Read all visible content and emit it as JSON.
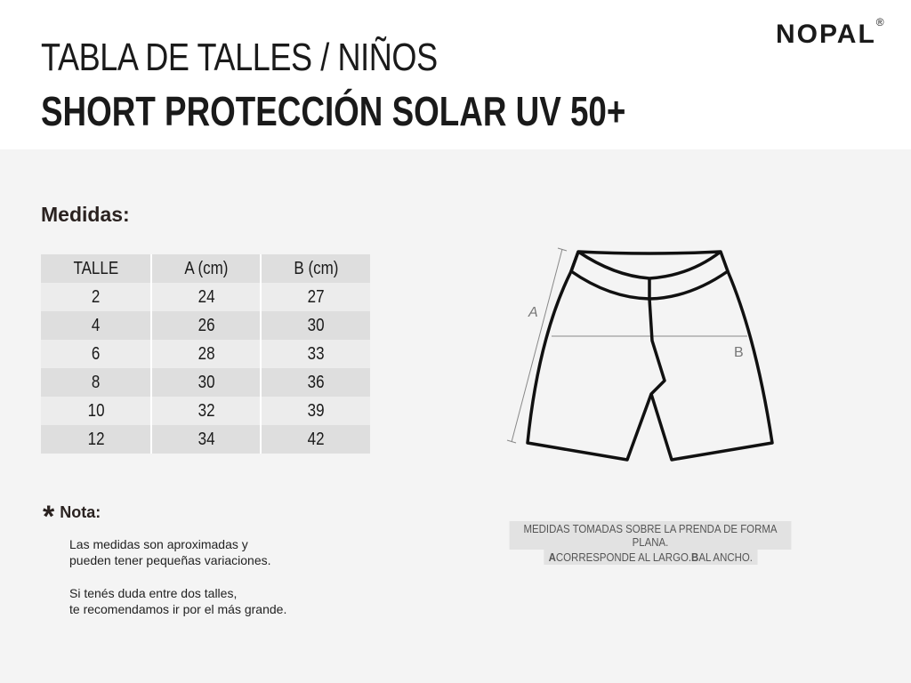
{
  "header": {
    "title": "TABLA DE TALLES / NIÑOS",
    "subtitle": "SHORT PROTECCIÓN SOLAR UV 50+",
    "logo": "NOPAL",
    "registered": "®"
  },
  "section_title": "Medidas:",
  "table": {
    "headers": [
      "TALLE",
      "A (cm)",
      "B (cm)"
    ],
    "rows": [
      [
        "2",
        "24",
        "27"
      ],
      [
        "4",
        "26",
        "30"
      ],
      [
        "6",
        "28",
        "33"
      ],
      [
        "8",
        "30",
        "36"
      ],
      [
        "10",
        "32",
        "39"
      ],
      [
        "12",
        "34",
        "42"
      ]
    ]
  },
  "note": {
    "title": "Nota:",
    "p1": [
      "Las medidas son aproximadas y",
      "pueden tener pequeñas variaciones."
    ],
    "p2": [
      "Si tenés duda entre dos talles,",
      "te recomendamos ir por el más grande."
    ]
  },
  "diagram": {
    "label_a": "A",
    "label_b": "B",
    "caption1": "MEDIDAS TOMADAS SOBRE LA PRENDA DE FORMA PLANA.",
    "caption2_a": "A",
    "caption2_mid": " CORRESPONDE AL LARGO. ",
    "caption2_b": "B",
    "caption2_end": " AL ANCHO."
  }
}
